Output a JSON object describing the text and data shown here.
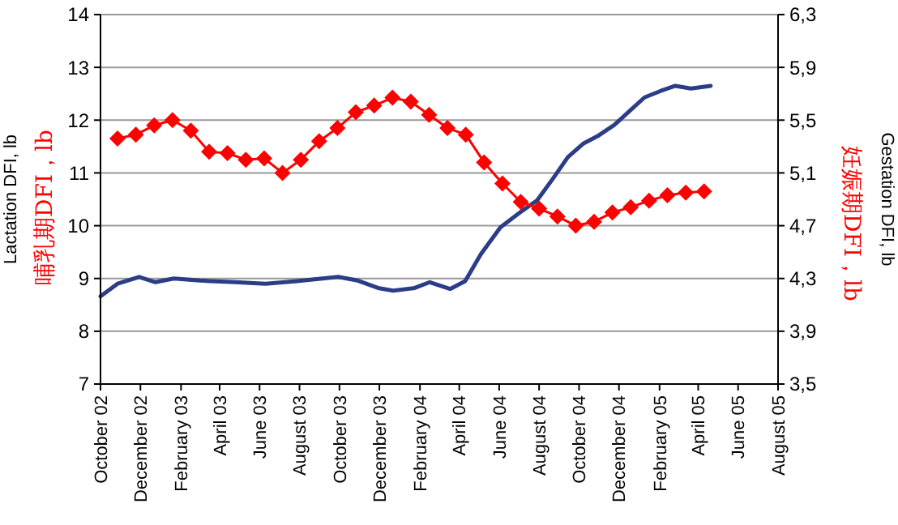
{
  "chart_data": {
    "type": "line",
    "ylabel": "Lactation DFI, lb",
    "y2label": "Gestation DFI, lb",
    "annotations": [
      "哺乳期DFI，lb",
      "妊娠期DFI，lb"
    ],
    "xlim": [
      "2002-10-01",
      "2005-08-01"
    ],
    "xticks": [
      {
        "value": "2002-10-01",
        "label": "October 02"
      },
      {
        "value": "2002-12-01",
        "label": "December 02"
      },
      {
        "value": "2003-02-01",
        "label": "February 03"
      },
      {
        "value": "2003-04-01",
        "label": "April 03"
      },
      {
        "value": "2003-06-01",
        "label": "June 03"
      },
      {
        "value": "2003-08-01",
        "label": "August 03"
      },
      {
        "value": "2003-10-01",
        "label": "October 03"
      },
      {
        "value": "2003-12-01",
        "label": "December 03"
      },
      {
        "value": "2004-02-01",
        "label": "February 04"
      },
      {
        "value": "2004-04-01",
        "label": "April 04"
      },
      {
        "value": "2004-06-01",
        "label": "June 04"
      },
      {
        "value": "2004-08-01",
        "label": "August 04"
      },
      {
        "value": "2004-10-01",
        "label": "October 04"
      },
      {
        "value": "2004-12-01",
        "label": "December 04"
      },
      {
        "value": "2005-02-01",
        "label": "February 05"
      },
      {
        "value": "2005-04-01",
        "label": "April 05"
      },
      {
        "value": "2005-06-01",
        "label": "June 05"
      },
      {
        "value": "2005-08-01",
        "label": "August 05"
      }
    ],
    "ylim": [
      7,
      14
    ],
    "yticks": [
      7,
      8,
      9,
      10,
      11,
      12,
      13,
      14
    ],
    "y2lim": [
      3.5,
      6.3
    ],
    "y2ticks": [
      {
        "value": 3.5,
        "label": "3,5"
      },
      {
        "value": 3.9,
        "label": "3,9"
      },
      {
        "value": 4.3,
        "label": "4,3"
      },
      {
        "value": 4.7,
        "label": "4,7"
      },
      {
        "value": 5.1,
        "label": "5,1"
      },
      {
        "value": 5.5,
        "label": "5,5"
      },
      {
        "value": 5.9,
        "label": "5,9"
      },
      {
        "value": 6.3,
        "label": "6,3"
      }
    ],
    "grid": "y",
    "series": [
      {
        "color": "#2b3d87",
        "marker": "none",
        "x": [
          "2002-10-01",
          "2002-10-27",
          "2002-11-29",
          "2002-12-24",
          "2003-01-21",
          "2003-03-02",
          "2003-04-25",
          "2003-06-10",
          "2003-07-28",
          "2003-09-29",
          "2003-10-29",
          "2003-11-29",
          "2003-12-22",
          "2004-01-24",
          "2004-02-16",
          "2004-03-18",
          "2004-04-10",
          "2004-05-04",
          "2004-06-03",
          "2004-07-06",
          "2004-07-29",
          "2004-08-22",
          "2004-09-14",
          "2004-10-08",
          "2004-10-31",
          "2004-11-24",
          "2004-12-17",
          "2005-01-09",
          "2005-02-02",
          "2005-02-25",
          "2005-03-21",
          "2005-04-20"
        ],
        "values": [
          8.66,
          8.9,
          9.03,
          8.93,
          9.0,
          8.96,
          8.93,
          8.9,
          8.95,
          9.03,
          8.96,
          8.82,
          8.77,
          8.82,
          8.93,
          8.8,
          8.95,
          9.46,
          9.97,
          10.28,
          10.48,
          10.89,
          11.3,
          11.56,
          11.71,
          11.91,
          12.17,
          12.43,
          12.55,
          12.65,
          12.6,
          12.65
        ]
      },
      {
        "color": "#ff0000",
        "marker": "diamond",
        "axis": "y2",
        "x": [
          "2002-10-27",
          "2002-11-24",
          "2002-12-22",
          "2003-01-19",
          "2003-02-16",
          "2003-03-16",
          "2003-04-13",
          "2003-05-11",
          "2003-06-08",
          "2003-07-06",
          "2003-08-03",
          "2003-08-31",
          "2003-09-28",
          "2003-10-26",
          "2003-11-23",
          "2003-12-21",
          "2004-01-18",
          "2004-02-15",
          "2004-03-14",
          "2004-04-11",
          "2004-05-09",
          "2004-06-06",
          "2004-07-04",
          "2004-08-01",
          "2004-08-29",
          "2004-09-26",
          "2004-10-24",
          "2004-11-21",
          "2004-12-19",
          "2005-01-16",
          "2005-02-13",
          "2005-03-13",
          "2005-04-10"
        ],
        "values": [
          5.36,
          5.39,
          5.46,
          5.5,
          5.42,
          5.26,
          5.25,
          5.2,
          5.21,
          5.1,
          5.2,
          5.34,
          5.44,
          5.56,
          5.61,
          5.67,
          5.64,
          5.54,
          5.44,
          5.39,
          5.18,
          5.02,
          4.88,
          4.83,
          4.77,
          4.7,
          4.73,
          4.8,
          4.84,
          4.89,
          4.93,
          4.95,
          4.96
        ]
      }
    ]
  }
}
